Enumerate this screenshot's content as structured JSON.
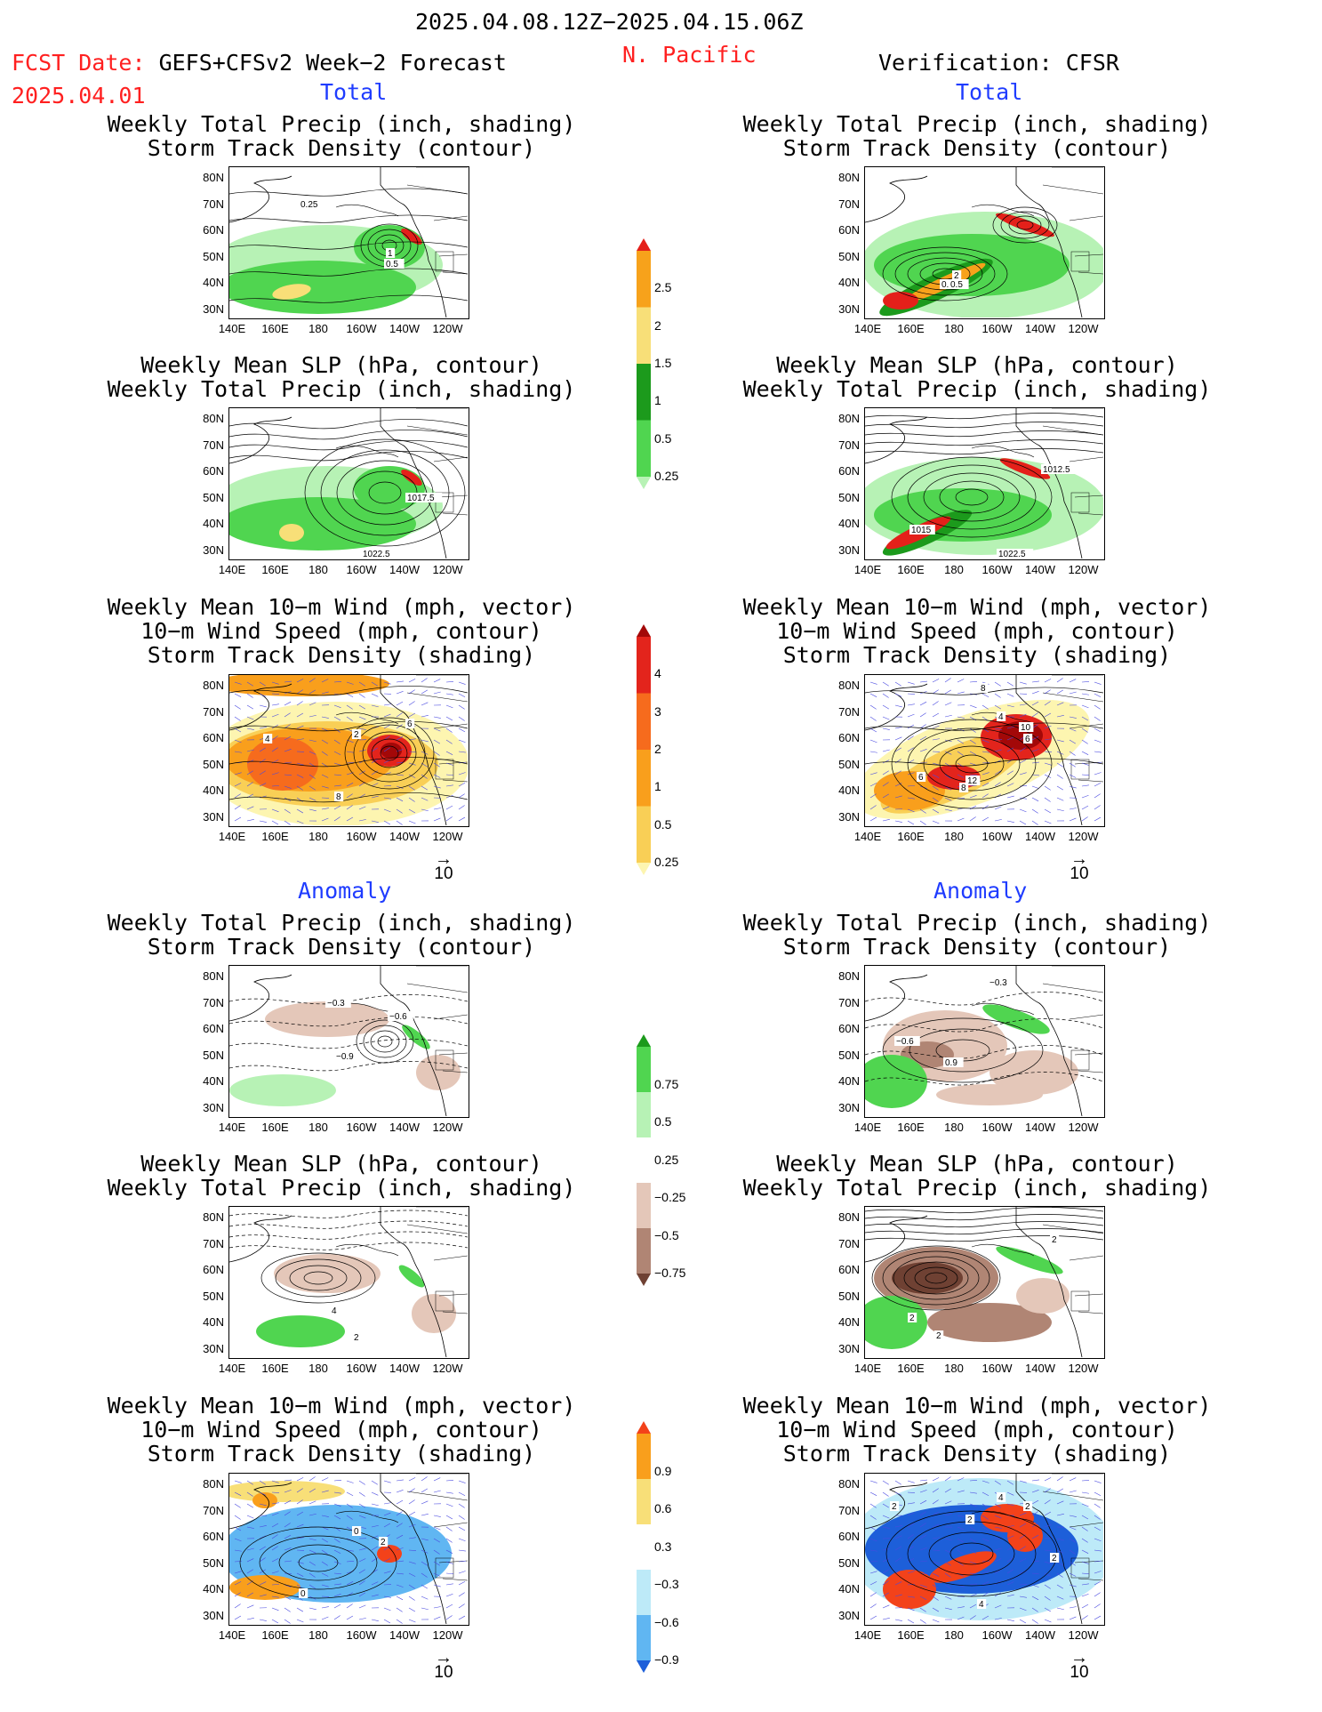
{
  "header": {
    "date_range": "2025.04.08.12Z−2025.04.15.06Z",
    "region": "N. Pacific",
    "fcst_label": "FCST Date:",
    "fcst_model": "GEFS+CFSv2 Week−2 Forecast",
    "fcst_date": "2025.04.01",
    "verification": "Verification: CFSR"
  },
  "section_titles": {
    "total_left": "Total",
    "total_right": "Total",
    "anomaly_left": "Anomaly",
    "anomaly_right": "Anomaly"
  },
  "panel_titles": {
    "precip_storm": [
      "Weekly Total Precip (inch, shading)",
      "Storm Track Density (contour)"
    ],
    "slp_precip": [
      "Weekly Mean SLP (hPa, contour)",
      "Weekly Total Precip (inch, shading)"
    ],
    "wind_storm": [
      "Weekly Mean 10−m Wind (mph, vector)",
      "10−m Wind Speed (mph, contour)",
      "Storm Track Density (shading)"
    ]
  },
  "axes": {
    "lat_labels": [
      "80N",
      "70N",
      "60N",
      "50N",
      "40N",
      "30N"
    ],
    "lon_labels": [
      "140E",
      "160E",
      "180",
      "160W",
      "140W",
      "120W"
    ]
  },
  "vector_key": "10",
  "colorbars": {
    "total_precip": {
      "labels": [
        "2.5",
        "2",
        "1.5",
        "1",
        "0.5",
        "0.25"
      ],
      "colors": [
        "#e4201a",
        "#f7a21b",
        "#f8df78",
        "#1c9a1c",
        "#50d550",
        "#b7f2b5"
      ]
    },
    "total_storm": {
      "labels": [
        "4",
        "3",
        "2",
        "1",
        "0.5",
        "0.25"
      ],
      "colors": [
        "#a30808",
        "#e3241c",
        "#f66b1d",
        "#f99f1c",
        "#f9cf56",
        "#fdf5b0"
      ]
    },
    "anom_precip": {
      "labels": [
        "0.75",
        "0.5",
        "0.25",
        "−0.25",
        "−0.5",
        "−0.75"
      ],
      "colors": [
        "#1c9a1c",
        "#50d550",
        "#b7f2b5",
        "#ffffff",
        "#e4c7b9",
        "#b08574",
        "#6f4133"
      ]
    },
    "anom_storm": {
      "labels": [
        "0.9",
        "0.6",
        "0.3",
        "−0.3",
        "−0.6",
        "−0.9"
      ],
      "colors": [
        "#f3421a",
        "#f99f1c",
        "#f8df78",
        "#ffffff",
        "#bdeaf8",
        "#60b6f2",
        "#1d5fd9"
      ]
    }
  },
  "contour_labels": {
    "m1": [
      "0.25",
      "1",
      "0.5"
    ],
    "m2": [
      "2",
      "0.5",
      "0.5"
    ],
    "m3": [
      "1017.5",
      "1022.5"
    ],
    "m4": [
      "1012.5",
      "1015",
      "1022.5"
    ],
    "m5": [
      "4",
      "2",
      "6",
      "8"
    ],
    "m6": [
      "8",
      "4",
      "10",
      "6",
      "12",
      "6",
      "8"
    ],
    "m7": [
      "−0.3",
      "−0.6",
      "−0.9"
    ],
    "m8": [
      "−0.3",
      "−0.6",
      "0.9"
    ],
    "m9": [
      "4",
      "2"
    ],
    "m10": [
      "2",
      "2",
      "2"
    ],
    "m11": [
      "0",
      "2",
      "0"
    ],
    "m12": [
      "2",
      "2",
      "2",
      "4",
      "2",
      "4"
    ]
  }
}
